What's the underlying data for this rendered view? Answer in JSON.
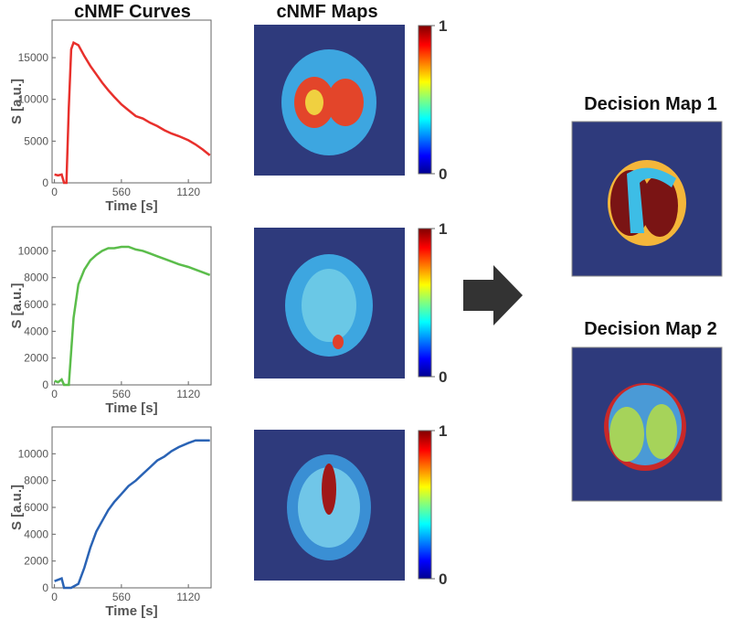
{
  "chart_data": [
    {
      "type": "line",
      "xlabel": "Time [s]",
      "ylabel": "S [a.u.]",
      "x": [
        0,
        30,
        60,
        80,
        100,
        120,
        140,
        160,
        200,
        250,
        300,
        350,
        400,
        450,
        500,
        560,
        620,
        680,
        740,
        800,
        860,
        920,
        980,
        1040,
        1120,
        1180,
        1240,
        1300
      ],
      "series": [
        {
          "color": "#e8302c",
          "values": [
            1000,
            900,
            1000,
            0,
            0,
            9000,
            16000,
            16800,
            16500,
            15200,
            14000,
            13000,
            12000,
            11100,
            10300,
            9400,
            8700,
            8000,
            7700,
            7200,
            6800,
            6300,
            5900,
            5600,
            5100,
            4600,
            4000,
            3300
          ]
        }
      ],
      "xlim": [
        -20,
        1310
      ],
      "ylim": [
        0,
        19500
      ],
      "xticks": [
        0,
        560,
        1120
      ],
      "yticks": [
        0,
        5000,
        10000,
        15000
      ]
    },
    {
      "type": "line",
      "xlabel": "Time [s]",
      "ylabel": "S [a.u.]",
      "x": [
        0,
        30,
        60,
        80,
        100,
        120,
        140,
        160,
        200,
        250,
        300,
        350,
        400,
        450,
        500,
        560,
        620,
        680,
        740,
        800,
        860,
        920,
        980,
        1040,
        1120,
        1180,
        1240,
        1300
      ],
      "series": [
        {
          "color": "#5bbd4b",
          "values": [
            300,
            200,
            400,
            0,
            0,
            0,
            2500,
            5000,
            7500,
            8600,
            9300,
            9700,
            10000,
            10200,
            10200,
            10300,
            10300,
            10100,
            10000,
            9800,
            9600,
            9400,
            9200,
            9000,
            8800,
            8600,
            8400,
            8200
          ]
        }
      ],
      "xlim": [
        -20,
        1310
      ],
      "ylim": [
        0,
        11800
      ],
      "xticks": [
        0,
        560,
        1120
      ],
      "yticks": [
        0,
        2000,
        4000,
        6000,
        8000,
        10000
      ]
    },
    {
      "type": "line",
      "xlabel": "Time [s]",
      "ylabel": "S [a.u.]",
      "x": [
        0,
        30,
        60,
        80,
        100,
        120,
        140,
        160,
        200,
        250,
        300,
        350,
        400,
        450,
        500,
        560,
        620,
        680,
        740,
        800,
        860,
        920,
        980,
        1040,
        1120,
        1180,
        1240,
        1300
      ],
      "series": [
        {
          "color": "#2a63b5",
          "values": [
            500,
            600,
            700,
            0,
            0,
            0,
            0,
            100,
            300,
            1500,
            3000,
            4200,
            5000,
            5800,
            6400,
            7000,
            7600,
            8000,
            8500,
            9000,
            9500,
            9800,
            10200,
            10500,
            10800,
            11000,
            11000,
            11000
          ]
        }
      ],
      "xlim": [
        -20,
        1310
      ],
      "ylim": [
        0,
        12000
      ],
      "xticks": [
        0,
        560,
        1120
      ],
      "yticks": [
        0,
        2000,
        4000,
        6000,
        8000,
        10000
      ]
    }
  ],
  "titles": {
    "curves": "cNMF Curves",
    "maps": "cNMF Maps"
  },
  "maps": [
    {
      "colorbar_ticks": [
        0,
        1
      ]
    },
    {
      "colorbar_ticks": [
        0,
        1
      ]
    },
    {
      "colorbar_ticks": [
        0,
        1
      ]
    }
  ],
  "decision_maps": [
    "Decision Map 1",
    "Decision Map 2"
  ]
}
